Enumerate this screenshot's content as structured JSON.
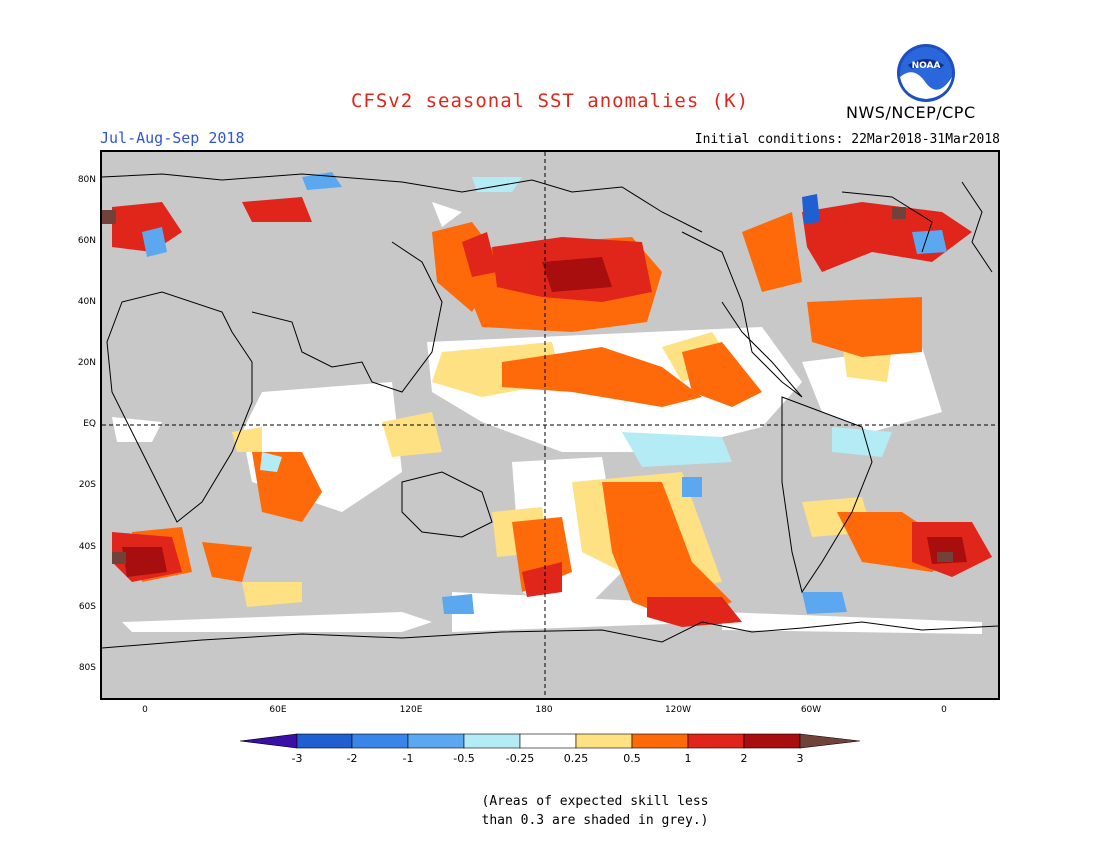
{
  "header": {
    "title": "CFSv2 seasonal SST anomalies (K)",
    "season": "Jul-Aug-Sep 2018",
    "initial_conditions": "Initial conditions: 22Mar2018-31Mar2018",
    "agency": "NWS/NCEP/CPC",
    "logo_text": "NOAA",
    "logo_icon": "noaa-logo-icon"
  },
  "map": {
    "lat_labels": [
      "80N",
      "60N",
      "40N",
      "20N",
      "EQ",
      "20S",
      "40S",
      "60S",
      "80S"
    ],
    "lon_labels": [
      "0",
      "60E",
      "120E",
      "180",
      "120W",
      "60W",
      "0"
    ],
    "land_color": "#c8c8c8",
    "ocean_neutral_color": "#ffffff"
  },
  "colorbar": {
    "labels": [
      "-3",
      "-2",
      "-1",
      "-0.5",
      "-0.25",
      "0.25",
      "0.5",
      "1",
      "2",
      "3"
    ],
    "colors": [
      "#3a0fa6",
      "#1f5fd0",
      "#3a86e8",
      "#5ba8f0",
      "#b4ecf6",
      "#ffffff",
      "#fee182",
      "#fe6a0a",
      "#e0251a",
      "#a80e0e",
      "#70423a"
    ]
  },
  "note": {
    "line1": "(Areas of expected skill less",
    "line2": "than 0.3 are shaded in grey.)"
  }
}
